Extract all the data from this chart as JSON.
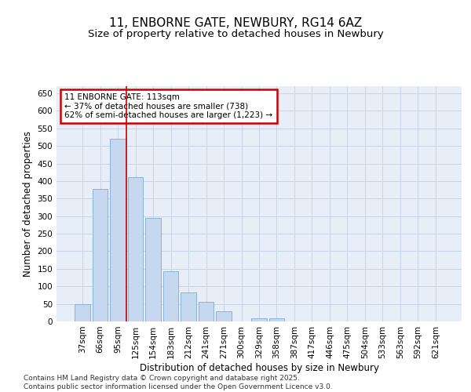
{
  "title": "11, ENBORNE GATE, NEWBURY, RG14 6AZ",
  "subtitle": "Size of property relative to detached houses in Newbury",
  "xlabel": "Distribution of detached houses by size in Newbury",
  "ylabel": "Number of detached properties",
  "categories": [
    "37sqm",
    "66sqm",
    "95sqm",
    "125sqm",
    "154sqm",
    "183sqm",
    "212sqm",
    "241sqm",
    "271sqm",
    "300sqm",
    "329sqm",
    "358sqm",
    "387sqm",
    "417sqm",
    "446sqm",
    "475sqm",
    "504sqm",
    "533sqm",
    "563sqm",
    "592sqm",
    "621sqm"
  ],
  "values": [
    50,
    378,
    520,
    410,
    295,
    143,
    83,
    55,
    28,
    0,
    10,
    10,
    0,
    0,
    0,
    0,
    0,
    0,
    0,
    0,
    0
  ],
  "bar_color": "#c5d8f0",
  "bar_edge_color": "#7badd4",
  "grid_color": "#c8d4e8",
  "bg_color": "#e8eef8",
  "red_line_x": 2.5,
  "annotation_text": "11 ENBORNE GATE: 113sqm\n← 37% of detached houses are smaller (738)\n62% of semi-detached houses are larger (1,223) →",
  "annotation_box_color": "#ffffff",
  "annotation_border_color": "#cc0000",
  "ylim": [
    0,
    670
  ],
  "yticks": [
    0,
    50,
    100,
    150,
    200,
    250,
    300,
    350,
    400,
    450,
    500,
    550,
    600,
    650
  ],
  "footer_line1": "Contains HM Land Registry data © Crown copyright and database right 2025.",
  "footer_line2": "Contains public sector information licensed under the Open Government Licence v3.0.",
  "title_fontsize": 11,
  "subtitle_fontsize": 9.5,
  "axis_label_fontsize": 8.5,
  "tick_fontsize": 7.5,
  "annotation_fontsize": 7.5,
  "footer_fontsize": 6.5
}
